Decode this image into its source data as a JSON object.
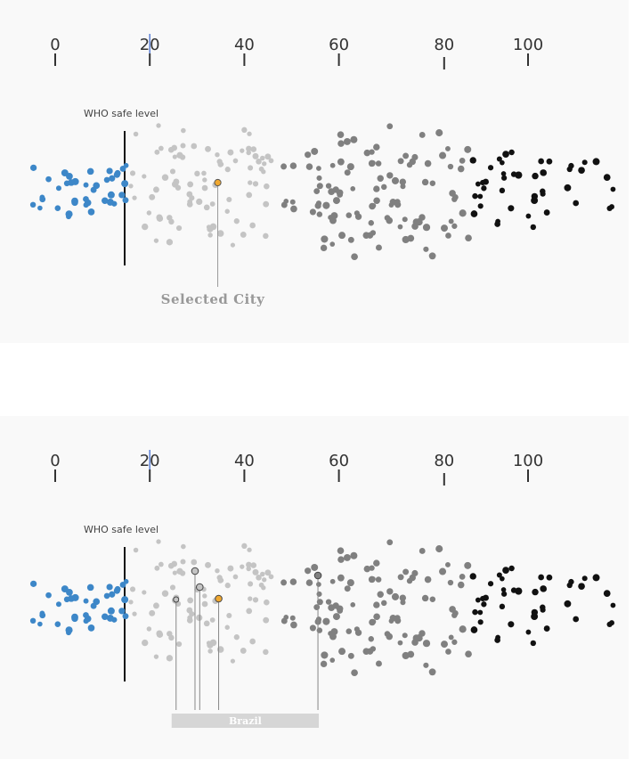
{
  "chart_data": [
    {
      "type": "scatter",
      "description_of_encoding": "beeswarm of city pollution values",
      "tick_labels": [
        "0",
        "20",
        "40",
        "60",
        "80",
        "100"
      ],
      "tick_values": [
        0,
        20,
        40,
        60,
        80,
        100
      ],
      "xlim": [
        0,
        118
      ],
      "reference_line": {
        "value": 20
      },
      "threshold": {
        "label": "WHO safe level",
        "value": 15
      },
      "bands": [
        {
          "range": [
            -5,
            15
          ],
          "color": "#3d87c8",
          "count": 40
        },
        {
          "range": [
            16,
            46
          ],
          "color": "#c4c4c4",
          "count": 85
        },
        {
          "range": [
            48,
            88
          ],
          "color": "#808080",
          "count": 110
        },
        {
          "range": [
            88,
            119
          ],
          "color": "#111111",
          "count": 45
        }
      ],
      "highlight": {
        "label": "Selected City",
        "value": 34,
        "color": "#f0a830"
      }
    },
    {
      "type": "scatter",
      "tick_labels": [
        "0",
        "20",
        "40",
        "60",
        "80",
        "100"
      ],
      "tick_values": [
        0,
        20,
        40,
        60,
        80,
        100
      ],
      "xlim": [
        0,
        118
      ],
      "reference_line": {
        "value": 20
      },
      "threshold": {
        "label": "WHO safe level",
        "value": 15
      },
      "bands": [
        {
          "range": [
            -5,
            15
          ],
          "color": "#3d87c8",
          "count": 40
        },
        {
          "range": [
            16,
            46
          ],
          "color": "#c4c4c4",
          "count": 85
        },
        {
          "range": [
            48,
            88
          ],
          "color": "#808080",
          "count": 110
        },
        {
          "range": [
            88,
            119
          ],
          "color": "#111111",
          "count": 45
        }
      ],
      "highlights": [
        {
          "value": 25,
          "color": "#c4c4c4"
        },
        {
          "value": 29,
          "color": "#c4c4c4"
        },
        {
          "value": 30,
          "color": "#c4c4c4"
        },
        {
          "value": 34,
          "color": "#f0a830"
        },
        {
          "value": 55,
          "color": "#808080"
        }
      ],
      "group": {
        "label": "Brazil",
        "range": [
          25,
          55
        ]
      }
    }
  ]
}
